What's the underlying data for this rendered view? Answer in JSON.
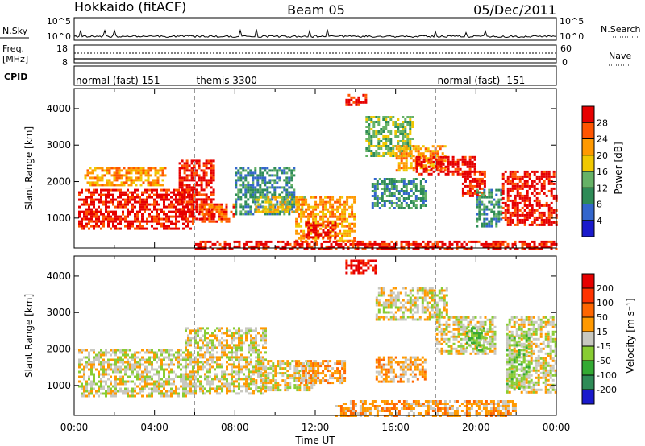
{
  "header": {
    "station": "Hokkaido (fitACF)",
    "beam": "Beam 05",
    "date": "05/Dec/2011"
  },
  "panels": {
    "nsky": {
      "label": "N.Sky",
      "left_ticks": [
        "10^5",
        "10^0"
      ],
      "right_ticks": [
        "10^5",
        "10^0"
      ],
      "right_label": "N.Search"
    },
    "freq": {
      "label_line1": "Freq.",
      "label_line2": "[MHz]",
      "left_ticks": [
        "18",
        "8"
      ],
      "right_ticks": [
        "60",
        "0"
      ],
      "right_label": "Nave"
    },
    "cpid": {
      "label": "CPID",
      "segments": [
        {
          "name": "normal (fast) 151",
          "start_hour": 0,
          "end_hour": 6
        },
        {
          "name": "themis 3300",
          "start_hour": 6,
          "end_hour": 18
        },
        {
          "name": "normal (fast) -151",
          "start_hour": 18,
          "end_hour": 24
        }
      ]
    }
  },
  "chart_data": [
    {
      "type": "heatmap",
      "name": "power",
      "ylabel": "Slant Range [km]",
      "yticks": [
        1000,
        2000,
        3000,
        4000
      ],
      "ylim": [
        180,
        4550
      ],
      "xlim": [
        0,
        24
      ],
      "colorbar": {
        "label": "Power [dB]",
        "ticks": [
          "4",
          "8",
          "12",
          "16",
          "20",
          "24",
          "28"
        ],
        "colors": [
          "#1a1acc",
          "#3366cc",
          "#2e8b57",
          "#66b266",
          "#f0c800",
          "#ff9900",
          "#ff5500",
          "#e60000"
        ]
      },
      "regions": [
        {
          "t0": 0.2,
          "t1": 5.9,
          "r0": 700,
          "r1": 1800,
          "level": 7
        },
        {
          "t0": 0.5,
          "t1": 4.5,
          "r0": 1900,
          "r1": 2400,
          "level": 5
        },
        {
          "t0": 5.2,
          "t1": 6.9,
          "r0": 1000,
          "r1": 2600,
          "level": 7
        },
        {
          "t0": 6.2,
          "t1": 8.0,
          "r0": 900,
          "r1": 1400,
          "level": 6
        },
        {
          "t0": 8.0,
          "t1": 11.0,
          "r0": 1100,
          "r1": 2400,
          "level": 2
        },
        {
          "t0": 9.0,
          "t1": 11.5,
          "r0": 1200,
          "r1": 1600,
          "level": 4
        },
        {
          "t0": 11.0,
          "t1": 14.0,
          "r0": 400,
          "r1": 1600,
          "level": 5
        },
        {
          "t0": 11.5,
          "t1": 13.0,
          "r0": 500,
          "r1": 900,
          "level": 7
        },
        {
          "t0": 13.5,
          "t1": 14.5,
          "r0": 4100,
          "r1": 4400,
          "level": 7
        },
        {
          "t0": 14.5,
          "t1": 16.8,
          "r0": 2700,
          "r1": 3800,
          "level": 3
        },
        {
          "t0": 14.8,
          "t1": 17.5,
          "r0": 1300,
          "r1": 2100,
          "level": 2
        },
        {
          "t0": 16.0,
          "t1": 18.5,
          "r0": 2300,
          "r1": 3000,
          "level": 5
        },
        {
          "t0": 17.0,
          "t1": 20.0,
          "r0": 2200,
          "r1": 2700,
          "level": 7
        },
        {
          "t0": 19.3,
          "t1": 20.5,
          "r0": 1600,
          "r1": 2300,
          "level": 7
        },
        {
          "t0": 20.0,
          "t1": 21.3,
          "r0": 800,
          "r1": 1800,
          "level": 2
        },
        {
          "t0": 21.3,
          "t1": 24.0,
          "r0": 800,
          "r1": 2300,
          "level": 7
        },
        {
          "t0": 6.0,
          "t1": 24.0,
          "r0": 180,
          "r1": 380,
          "level": 7
        }
      ]
    },
    {
      "type": "heatmap",
      "name": "velocity",
      "ylabel": "Slant Range [km]",
      "yticks": [
        1000,
        2000,
        3000,
        4000
      ],
      "ylim": [
        180,
        4550
      ],
      "xlim": [
        0,
        24
      ],
      "colorbar": {
        "label": "Velocity [m s⁻¹]",
        "ticks": [
          "200",
          "100",
          "50",
          "15",
          "-15",
          "-50",
          "-100",
          "-200"
        ],
        "colors": [
          "#1a1acc",
          "#2e8b57",
          "#33aa33",
          "#88cc33",
          "#c8c8c0",
          "#ff9900",
          "#ff6600",
          "#ff3300",
          "#e60000"
        ]
      },
      "regions": [
        {
          "t0": 0.2,
          "t1": 6.0,
          "r0": 700,
          "r1": 2000,
          "level": 4
        },
        {
          "t0": 5.5,
          "t1": 9.5,
          "r0": 800,
          "r1": 2600,
          "level": 4
        },
        {
          "t0": 9.0,
          "t1": 12.0,
          "r0": 900,
          "r1": 1700,
          "level": 4
        },
        {
          "t0": 11.0,
          "t1": 13.5,
          "r0": 1100,
          "r1": 1700,
          "level": 5
        },
        {
          "t0": 13.5,
          "t1": 15.0,
          "r0": 4100,
          "r1": 4450,
          "level": 8
        },
        {
          "t0": 15.0,
          "t1": 17.5,
          "r0": 1100,
          "r1": 1800,
          "level": 5
        },
        {
          "t0": 15.0,
          "t1": 18.5,
          "r0": 2800,
          "r1": 3700,
          "level": 4
        },
        {
          "t0": 18.0,
          "t1": 21.0,
          "r0": 1900,
          "r1": 2900,
          "level": 4
        },
        {
          "t0": 19.5,
          "t1": 20.5,
          "r0": 2000,
          "r1": 2600,
          "level": 3
        },
        {
          "t0": 21.5,
          "t1": 24.0,
          "r0": 800,
          "r1": 2900,
          "level": 4
        },
        {
          "t0": 21.5,
          "t1": 22.7,
          "r0": 900,
          "r1": 2400,
          "level": 3
        },
        {
          "t0": 13.0,
          "t1": 22.0,
          "r0": 180,
          "r1": 600,
          "level": 5
        }
      ]
    }
  ],
  "x_axis": {
    "ticks": [
      "00:00",
      "04:00",
      "08:00",
      "12:00",
      "16:00",
      "20:00",
      "00:00"
    ],
    "label": "Time UT"
  },
  "colors": {
    "divider": "#999999",
    "trace": "#000000"
  }
}
